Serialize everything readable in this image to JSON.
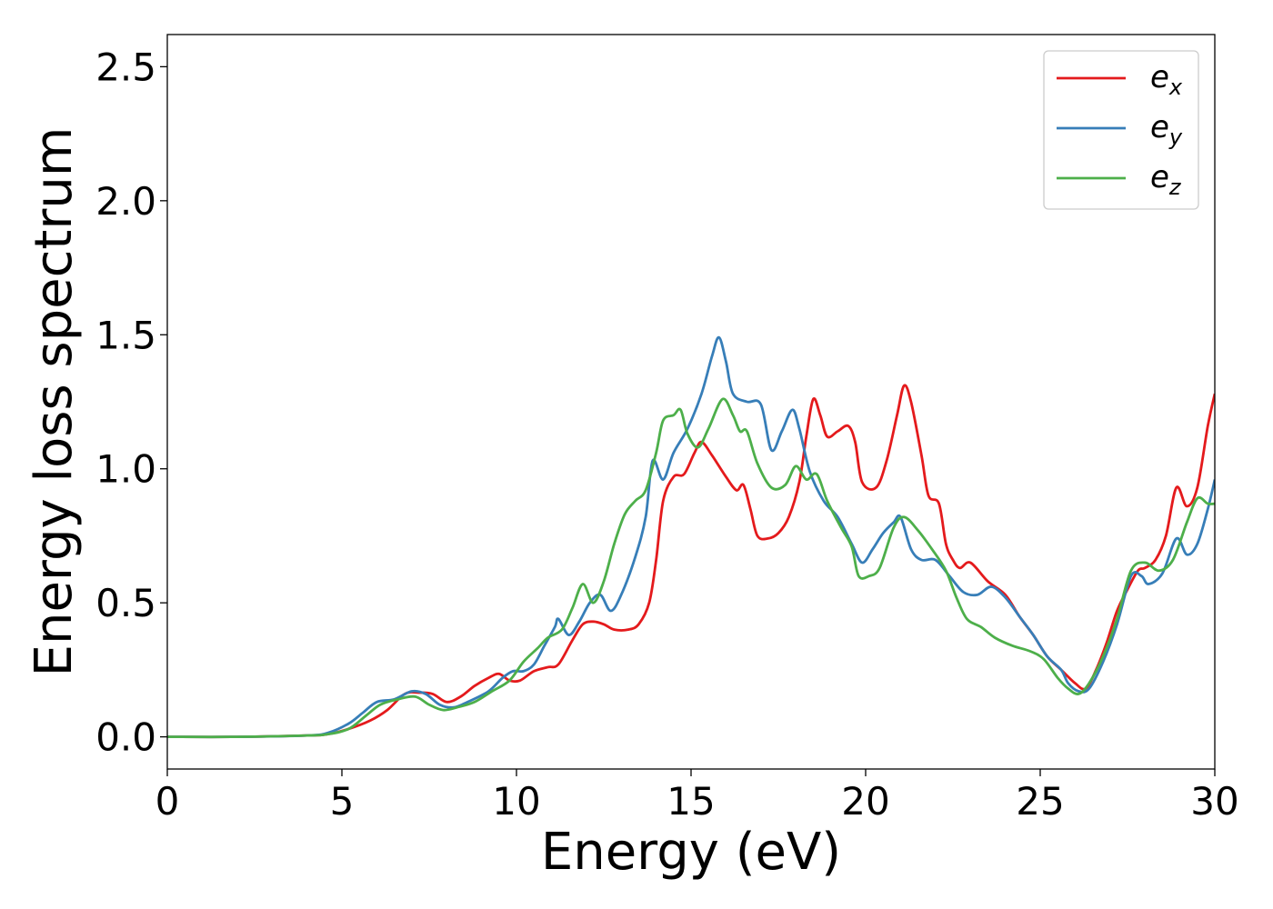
{
  "chart_data": {
    "type": "line",
    "title": "",
    "xlabel": "Energy (eV)",
    "ylabel": "Energy loss spectrum",
    "xlim": [
      0,
      30
    ],
    "ylim": [
      -0.12,
      2.62
    ],
    "xticks": [
      0,
      5,
      10,
      15,
      20,
      25,
      30
    ],
    "xtick_labels": [
      "0",
      "5",
      "10",
      "15",
      "20",
      "25",
      "30"
    ],
    "yticks": [
      0.0,
      0.5,
      1.0,
      1.5,
      2.0,
      2.5
    ],
    "ytick_labels": [
      "0.0",
      "0.5",
      "1.0",
      "1.5",
      "2.0",
      "2.5"
    ],
    "grid": false,
    "legend_position": "top-right",
    "series": [
      {
        "name": "e_x",
        "label_main": "e",
        "label_sub": "x",
        "color": "#e41a1c",
        "points": [
          [
            0,
            0
          ],
          [
            2,
            0
          ],
          [
            4,
            0.005
          ],
          [
            4.6,
            0.01
          ],
          [
            5.2,
            0.03
          ],
          [
            5.8,
            0.06
          ],
          [
            6.3,
            0.1
          ],
          [
            6.8,
            0.16
          ],
          [
            7.2,
            0.165
          ],
          [
            7.6,
            0.16
          ],
          [
            8,
            0.13
          ],
          [
            8.4,
            0.15
          ],
          [
            8.8,
            0.19
          ],
          [
            9.2,
            0.22
          ],
          [
            9.5,
            0.235
          ],
          [
            9.8,
            0.21
          ],
          [
            10.1,
            0.21
          ],
          [
            10.5,
            0.245
          ],
          [
            10.9,
            0.26
          ],
          [
            11.2,
            0.27
          ],
          [
            11.6,
            0.36
          ],
          [
            11.9,
            0.42
          ],
          [
            12.2,
            0.43
          ],
          [
            12.5,
            0.42
          ],
          [
            12.8,
            0.4
          ],
          [
            13.2,
            0.4
          ],
          [
            13.5,
            0.42
          ],
          [
            13.8,
            0.5
          ],
          [
            14,
            0.66
          ],
          [
            14.2,
            0.88
          ],
          [
            14.5,
            0.97
          ],
          [
            14.8,
            0.98
          ],
          [
            15.1,
            1.06
          ],
          [
            15.3,
            1.1
          ],
          [
            15.6,
            1.05
          ],
          [
            16,
            0.97
          ],
          [
            16.3,
            0.92
          ],
          [
            16.5,
            0.94
          ],
          [
            16.7,
            0.85
          ],
          [
            16.9,
            0.75
          ],
          [
            17.2,
            0.74
          ],
          [
            17.5,
            0.76
          ],
          [
            17.8,
            0.82
          ],
          [
            18.1,
            0.95
          ],
          [
            18.3,
            1.12
          ],
          [
            18.5,
            1.26
          ],
          [
            18.7,
            1.2
          ],
          [
            18.9,
            1.12
          ],
          [
            19.2,
            1.14
          ],
          [
            19.5,
            1.16
          ],
          [
            19.7,
            1.1
          ],
          [
            19.9,
            0.95
          ],
          [
            20.3,
            0.93
          ],
          [
            20.6,
            1.03
          ],
          [
            20.9,
            1.2
          ],
          [
            21.1,
            1.31
          ],
          [
            21.3,
            1.25
          ],
          [
            21.6,
            1.05
          ],
          [
            21.8,
            0.9
          ],
          [
            22.1,
            0.87
          ],
          [
            22.3,
            0.72
          ],
          [
            22.5,
            0.66
          ],
          [
            22.7,
            0.63
          ],
          [
            23,
            0.65
          ],
          [
            23.5,
            0.58
          ],
          [
            24,
            0.53
          ],
          [
            24.4,
            0.45
          ],
          [
            24.8,
            0.38
          ],
          [
            25.2,
            0.3
          ],
          [
            25.6,
            0.25
          ],
          [
            26,
            0.2
          ],
          [
            26.3,
            0.18
          ],
          [
            26.6,
            0.25
          ],
          [
            26.9,
            0.35
          ],
          [
            27.2,
            0.47
          ],
          [
            27.5,
            0.55
          ],
          [
            27.8,
            0.62
          ],
          [
            28,
            0.63
          ],
          [
            28.3,
            0.66
          ],
          [
            28.6,
            0.75
          ],
          [
            28.9,
            0.93
          ],
          [
            29.2,
            0.86
          ],
          [
            29.5,
            0.93
          ],
          [
            29.8,
            1.16
          ],
          [
            30,
            1.28
          ]
        ]
      },
      {
        "name": "e_y",
        "label_main": "e",
        "label_sub": "y",
        "color": "#377eb8",
        "points": [
          [
            0,
            0
          ],
          [
            2,
            0
          ],
          [
            4,
            0.005
          ],
          [
            4.6,
            0.015
          ],
          [
            5.2,
            0.05
          ],
          [
            5.6,
            0.09
          ],
          [
            6,
            0.13
          ],
          [
            6.5,
            0.14
          ],
          [
            7,
            0.17
          ],
          [
            7.4,
            0.16
          ],
          [
            7.8,
            0.12
          ],
          [
            8.2,
            0.11
          ],
          [
            8.6,
            0.13
          ],
          [
            9.2,
            0.17
          ],
          [
            9.6,
            0.22
          ],
          [
            9.9,
            0.245
          ],
          [
            10.2,
            0.245
          ],
          [
            10.5,
            0.27
          ],
          [
            10.8,
            0.34
          ],
          [
            11.1,
            0.41
          ],
          [
            11.2,
            0.44
          ],
          [
            11.5,
            0.38
          ],
          [
            11.8,
            0.43
          ],
          [
            12.1,
            0.5
          ],
          [
            12.4,
            0.53
          ],
          [
            12.7,
            0.47
          ],
          [
            13,
            0.53
          ],
          [
            13.4,
            0.67
          ],
          [
            13.7,
            0.82
          ],
          [
            13.9,
            1.03
          ],
          [
            14.2,
            0.96
          ],
          [
            14.5,
            1.06
          ],
          [
            14.9,
            1.15
          ],
          [
            15.3,
            1.28
          ],
          [
            15.6,
            1.42
          ],
          [
            15.8,
            1.49
          ],
          [
            16,
            1.4
          ],
          [
            16.2,
            1.28
          ],
          [
            16.6,
            1.25
          ],
          [
            17,
            1.24
          ],
          [
            17.3,
            1.07
          ],
          [
            17.6,
            1.14
          ],
          [
            17.9,
            1.22
          ],
          [
            18.1,
            1.15
          ],
          [
            18.4,
            0.99
          ],
          [
            18.8,
            0.88
          ],
          [
            19.2,
            0.82
          ],
          [
            19.6,
            0.72
          ],
          [
            19.9,
            0.65
          ],
          [
            20.2,
            0.7
          ],
          [
            20.5,
            0.76
          ],
          [
            20.8,
            0.8
          ],
          [
            21,
            0.82
          ],
          [
            21.3,
            0.7
          ],
          [
            21.6,
            0.66
          ],
          [
            22,
            0.66
          ],
          [
            22.4,
            0.6
          ],
          [
            22.8,
            0.54
          ],
          [
            23.2,
            0.53
          ],
          [
            23.6,
            0.56
          ],
          [
            24,
            0.52
          ],
          [
            24.4,
            0.45
          ],
          [
            24.8,
            0.38
          ],
          [
            25.2,
            0.3
          ],
          [
            25.6,
            0.25
          ],
          [
            25.8,
            0.2
          ],
          [
            26.1,
            0.17
          ],
          [
            26.4,
            0.18
          ],
          [
            26.8,
            0.28
          ],
          [
            27.2,
            0.42
          ],
          [
            27.6,
            0.6
          ],
          [
            27.9,
            0.6
          ],
          [
            28.1,
            0.57
          ],
          [
            28.5,
            0.61
          ],
          [
            28.9,
            0.74
          ],
          [
            29.2,
            0.68
          ],
          [
            29.5,
            0.72
          ],
          [
            29.8,
            0.85
          ],
          [
            30,
            0.96
          ]
        ]
      },
      {
        "name": "e_z",
        "label_main": "e",
        "label_sub": "z",
        "color": "#4daf4a",
        "points": [
          [
            0,
            0
          ],
          [
            2,
            0
          ],
          [
            4,
            0.005
          ],
          [
            4.6,
            0.01
          ],
          [
            5.2,
            0.03
          ],
          [
            5.7,
            0.08
          ],
          [
            6.1,
            0.12
          ],
          [
            6.6,
            0.14
          ],
          [
            7.1,
            0.15
          ],
          [
            7.5,
            0.12
          ],
          [
            7.9,
            0.1
          ],
          [
            8.3,
            0.11
          ],
          [
            8.8,
            0.13
          ],
          [
            9.3,
            0.17
          ],
          [
            9.8,
            0.21
          ],
          [
            10.2,
            0.28
          ],
          [
            10.6,
            0.33
          ],
          [
            10.9,
            0.37
          ],
          [
            11.3,
            0.4
          ],
          [
            11.6,
            0.48
          ],
          [
            11.9,
            0.57
          ],
          [
            12.2,
            0.5
          ],
          [
            12.5,
            0.58
          ],
          [
            12.8,
            0.72
          ],
          [
            13.1,
            0.83
          ],
          [
            13.4,
            0.88
          ],
          [
            13.7,
            0.92
          ],
          [
            14,
            1.06
          ],
          [
            14.2,
            1.18
          ],
          [
            14.5,
            1.2
          ],
          [
            14.7,
            1.22
          ],
          [
            14.9,
            1.13
          ],
          [
            15.2,
            1.08
          ],
          [
            15.5,
            1.15
          ],
          [
            15.9,
            1.26
          ],
          [
            16.2,
            1.2
          ],
          [
            16.4,
            1.14
          ],
          [
            16.6,
            1.14
          ],
          [
            16.9,
            1.02
          ],
          [
            17.3,
            0.93
          ],
          [
            17.7,
            0.94
          ],
          [
            18,
            1.01
          ],
          [
            18.3,
            0.96
          ],
          [
            18.6,
            0.98
          ],
          [
            18.9,
            0.88
          ],
          [
            19.3,
            0.78
          ],
          [
            19.6,
            0.71
          ],
          [
            19.8,
            0.6
          ],
          [
            20.1,
            0.6
          ],
          [
            20.4,
            0.63
          ],
          [
            20.8,
            0.78
          ],
          [
            21.1,
            0.82
          ],
          [
            21.5,
            0.77
          ],
          [
            21.9,
            0.7
          ],
          [
            22.3,
            0.62
          ],
          [
            22.6,
            0.52
          ],
          [
            22.9,
            0.44
          ],
          [
            23.3,
            0.41
          ],
          [
            23.7,
            0.37
          ],
          [
            24.2,
            0.34
          ],
          [
            24.7,
            0.32
          ],
          [
            25.1,
            0.29
          ],
          [
            25.5,
            0.22
          ],
          [
            25.8,
            0.18
          ],
          [
            26.1,
            0.16
          ],
          [
            26.4,
            0.2
          ],
          [
            26.8,
            0.3
          ],
          [
            27.2,
            0.44
          ],
          [
            27.6,
            0.62
          ],
          [
            28,
            0.65
          ],
          [
            28.4,
            0.62
          ],
          [
            28.8,
            0.66
          ],
          [
            29.2,
            0.8
          ],
          [
            29.5,
            0.89
          ],
          [
            29.8,
            0.87
          ],
          [
            30,
            0.87
          ]
        ]
      }
    ]
  }
}
